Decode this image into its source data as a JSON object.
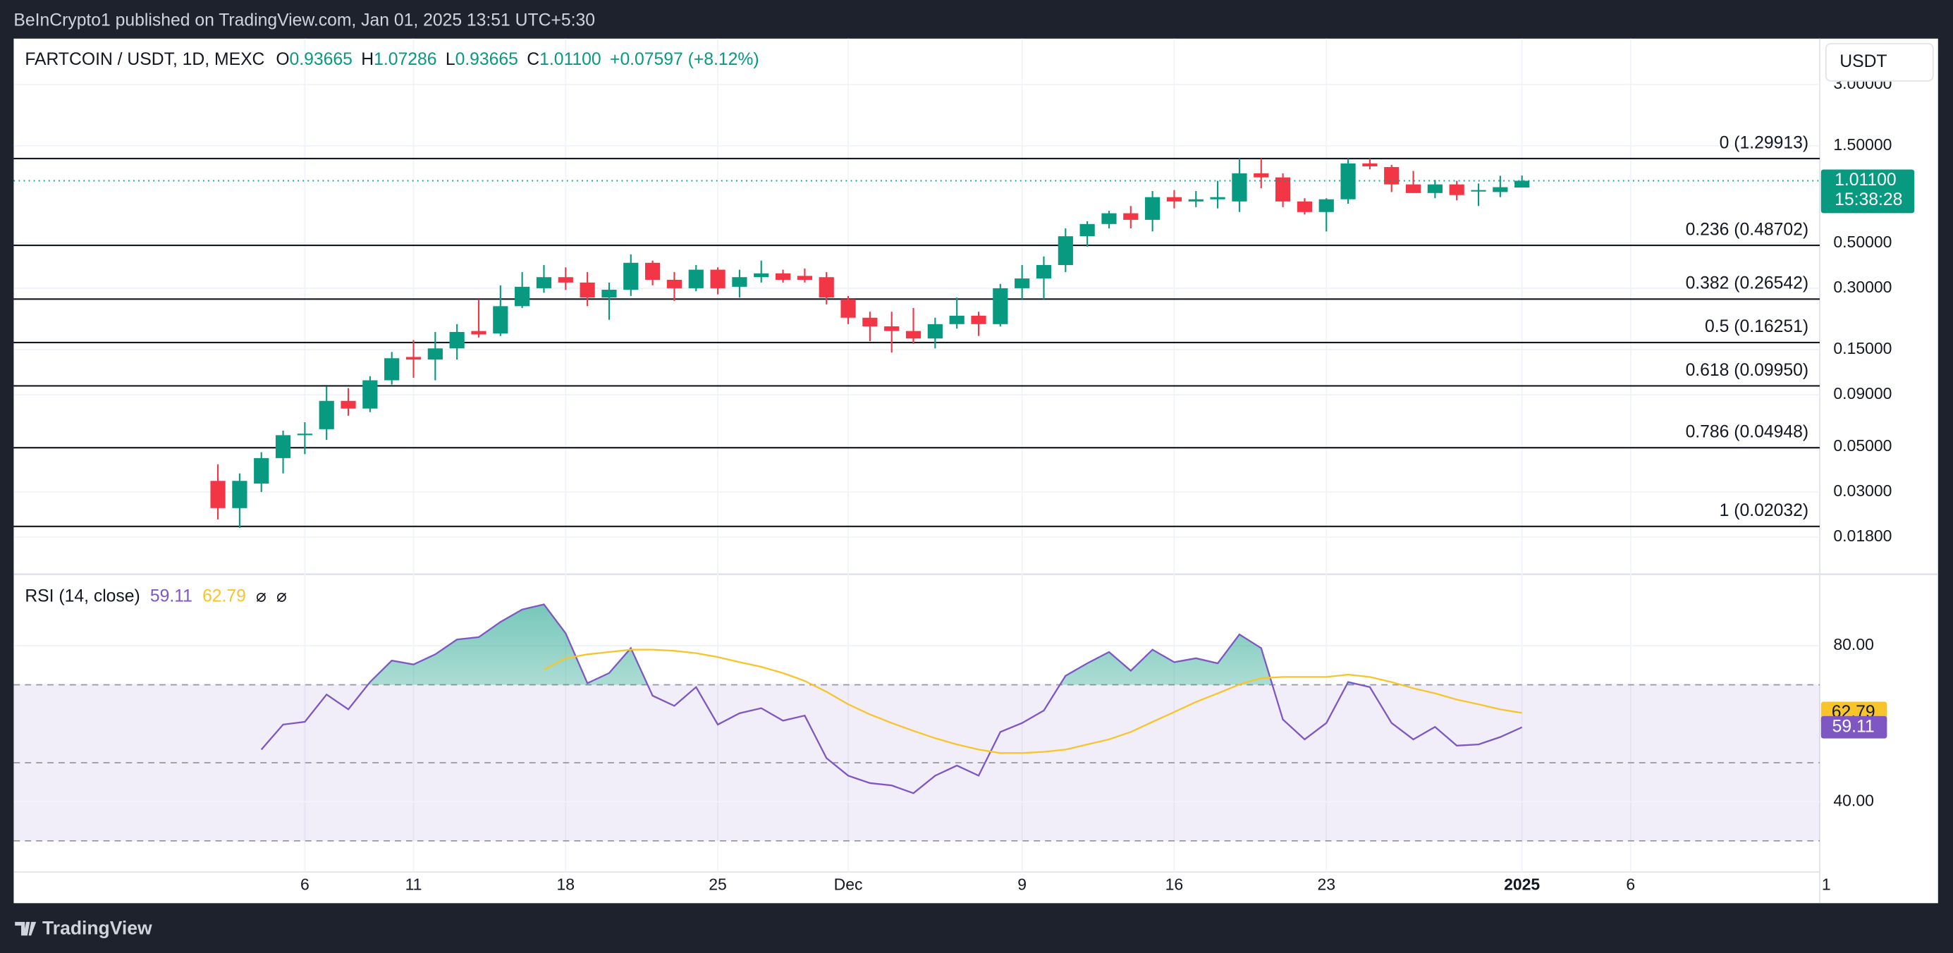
{
  "header": {
    "published": "BeInCrypto1 published on TradingView.com, Jan 01, 2025 13:51 UTC+5:30"
  },
  "footer": {
    "brand": "TradingView"
  },
  "chart_data": [
    {
      "type": "candlestick",
      "legend": {
        "symbol": "FARTCOIN / USDT, 1D, MEXC",
        "fields": [
          {
            "key": "O",
            "label": "0.93665"
          },
          {
            "key": "H",
            "label": "1.07286"
          },
          {
            "key": "L",
            "label": "0.93665"
          },
          {
            "key": "C",
            "label": "1.01100"
          }
        ],
        "change": "+0.07597 (+8.12%)"
      },
      "currency": "USDT",
      "countdown": "15:38:28",
      "up_color": "#089981",
      "down_color": "#f23645",
      "log_scale": true,
      "grid": true,
      "ylim": [
        0.012,
        5.04
      ],
      "yticks": [
        {
          "value": 3,
          "label": "3.00000"
        },
        {
          "value": 1.5,
          "label": "1.50000"
        },
        {
          "value": 0.5,
          "label": "0.50000"
        },
        {
          "value": 0.3,
          "label": "0.30000"
        },
        {
          "value": 0.15,
          "label": "0.15000"
        },
        {
          "value": 0.09,
          "label": "0.09000"
        },
        {
          "value": 0.05,
          "label": "0.05000"
        },
        {
          "value": 0.03,
          "label": "0.03000"
        },
        {
          "value": 0.018,
          "label": "0.01800"
        }
      ],
      "fib_levels": [
        {
          "value": 1.29913,
          "label": "0 (1.29913)"
        },
        {
          "value": 0.48702,
          "label": "0.236 (0.48702)"
        },
        {
          "value": 0.26542,
          "label": "0.382 (0.26542)"
        },
        {
          "value": 0.16251,
          "label": "0.5 (0.16251)"
        },
        {
          "value": 0.0995,
          "label": "0.618 (0.09950)"
        },
        {
          "value": 0.04948,
          "label": "0.786 (0.04948)"
        },
        {
          "value": 0.02032,
          "label": "1 (0.02032)"
        }
      ],
      "categories": [
        null,
        null,
        null,
        null,
        "6",
        null,
        null,
        null,
        null,
        "11",
        null,
        null,
        null,
        null,
        null,
        null,
        "18",
        null,
        null,
        null,
        null,
        null,
        null,
        "25",
        null,
        null,
        null,
        null,
        null,
        "Dec",
        null,
        null,
        null,
        null,
        null,
        null,
        null,
        "9",
        null,
        null,
        null,
        null,
        null,
        null,
        "16",
        null,
        null,
        null,
        null,
        null,
        null,
        "23",
        null,
        null,
        null,
        null,
        null,
        null,
        null,
        null,
        "2025",
        null,
        null,
        null,
        null,
        "6",
        null,
        null,
        null,
        null,
        null,
        null,
        null,
        null,
        "1"
      ],
      "open": [
        0.034,
        0.025,
        0.033,
        0.044,
        0.057,
        0.061,
        0.084,
        0.077,
        0.106,
        0.138,
        0.134,
        0.152,
        0.185,
        0.18,
        0.245,
        0.3,
        0.34,
        0.32,
        0.27,
        0.295,
        0.4,
        0.33,
        0.3,
        0.37,
        0.305,
        0.34,
        0.355,
        0.345,
        0.34,
        0.265,
        0.215,
        0.195,
        0.185,
        0.17,
        0.2,
        0.22,
        0.2,
        0.3,
        0.335,
        0.39,
        0.54,
        0.62,
        0.7,
        0.65,
        0.84,
        0.8,
        0.82,
        0.8,
        1.1,
        1.05,
        0.8,
        0.71,
        0.82,
        1.23,
        1.18,
        0.97,
        0.88,
        0.97,
        0.9,
        0.89,
        0.93665,
        null,
        null,
        null,
        null,
        null,
        null,
        null,
        null,
        null,
        null,
        null,
        null,
        null,
        null
      ],
      "high": [
        0.041,
        0.037,
        0.047,
        0.06,
        0.066,
        0.099,
        0.097,
        0.111,
        0.146,
        0.167,
        0.183,
        0.2,
        0.265,
        0.31,
        0.36,
        0.39,
        0.38,
        0.36,
        0.32,
        0.44,
        0.41,
        0.36,
        0.39,
        0.38,
        0.37,
        0.41,
        0.37,
        0.375,
        0.36,
        0.275,
        0.23,
        0.23,
        0.24,
        0.215,
        0.27,
        0.23,
        0.315,
        0.39,
        0.43,
        0.59,
        0.64,
        0.72,
        0.76,
        0.9,
        0.91,
        0.9,
        1.01,
        1.3,
        1.3,
        1.1,
        0.83,
        0.83,
        1.3,
        1.3,
        1.21,
        1.13,
        1.02,
        1.01,
        0.98,
        1.07,
        1.07286,
        null,
        null,
        null,
        null,
        null,
        null,
        null,
        null,
        null,
        null,
        null,
        null,
        null,
        null
      ],
      "low": [
        0.022,
        0.02,
        0.03,
        0.037,
        0.046,
        0.054,
        0.071,
        0.074,
        0.101,
        0.109,
        0.106,
        0.134,
        0.172,
        0.175,
        0.24,
        0.285,
        0.295,
        0.245,
        0.21,
        0.275,
        0.31,
        0.26,
        0.29,
        0.28,
        0.27,
        0.32,
        0.32,
        0.32,
        0.25,
        0.2,
        0.165,
        0.145,
        0.16,
        0.152,
        0.19,
        0.175,
        0.195,
        0.265,
        0.265,
        0.36,
        0.48,
        0.59,
        0.59,
        0.57,
        0.74,
        0.75,
        0.74,
        0.71,
        0.93,
        0.75,
        0.69,
        0.57,
        0.78,
        1.15,
        0.89,
        0.88,
        0.83,
        0.81,
        0.76,
        0.84,
        0.93665,
        null,
        null,
        null,
        null,
        null,
        null,
        null,
        null,
        null,
        null,
        null,
        null,
        null,
        null
      ],
      "close": [
        0.025,
        0.034,
        0.044,
        0.057,
        0.058,
        0.084,
        0.077,
        0.106,
        0.136,
        0.134,
        0.152,
        0.183,
        0.178,
        0.245,
        0.305,
        0.34,
        0.32,
        0.27,
        0.295,
        0.4,
        0.33,
        0.3,
        0.37,
        0.3,
        0.34,
        0.355,
        0.33,
        0.33,
        0.27,
        0.215,
        0.195,
        0.185,
        0.17,
        0.2,
        0.22,
        0.2,
        0.3,
        0.335,
        0.39,
        0.54,
        0.62,
        0.7,
        0.65,
        0.84,
        0.8,
        0.82,
        0.84,
        1.1,
        1.05,
        0.8,
        0.71,
        0.82,
        1.23,
        1.19,
        0.97,
        0.88,
        0.97,
        0.86,
        0.91,
        0.94,
        1.011,
        null,
        null,
        null,
        null,
        null,
        null,
        null,
        null,
        null,
        null,
        null,
        null,
        null,
        null
      ]
    },
    {
      "type": "line",
      "title": "RSI (14, close)",
      "flags": [
        "⌀",
        "⌀"
      ],
      "ylim": [
        22,
        98
      ],
      "yticks": [
        {
          "value": 80,
          "label": "80.00"
        },
        {
          "value": 40,
          "label": "40.00"
        }
      ],
      "bands": [
        70,
        50,
        30
      ],
      "band_color": "#7e57c2",
      "overbought_color": "#089981",
      "series": [
        {
          "color": "#7e57c2",
          "values": [
            null,
            null,
            53.4,
            59.8,
            60.5,
            67.5,
            63.7,
            70.7,
            76.2,
            75.2,
            77.8,
            81.6,
            82.2,
            86.1,
            89.3,
            90.6,
            83.2,
            70.4,
            73,
            79.4,
            67.2,
            64.6,
            69.4,
            59.8,
            62.7,
            64,
            60.8,
            62.1,
            51.2,
            46.7,
            44.8,
            44.2,
            42.2,
            46.7,
            49.3,
            46.7,
            57.9,
            60.2,
            63.4,
            72.3,
            75.5,
            78.4,
            73.6,
            79,
            75.8,
            76.8,
            75.5,
            82.9,
            79.4,
            61.1,
            56,
            60.2,
            70.7,
            69.4,
            60.2,
            56,
            59.2,
            54.4,
            54.7,
            56.6,
            59.11,
            null,
            null,
            null,
            null,
            null,
            null,
            null,
            null,
            null,
            null,
            null,
            null,
            null,
            null
          ]
        },
        {
          "color": "#f7c52b",
          "values": [
            null,
            null,
            null,
            null,
            null,
            null,
            null,
            null,
            null,
            null,
            null,
            null,
            null,
            null,
            null,
            73.9,
            76.8,
            77.8,
            78.4,
            79,
            79,
            78.7,
            78.1,
            77.1,
            75.8,
            74.6,
            73,
            71,
            68.2,
            65,
            62.4,
            60.2,
            58.2,
            56.3,
            54.7,
            53.4,
            52.5,
            52.5,
            52.8,
            53.4,
            54.7,
            56,
            57.9,
            60.5,
            63,
            65.6,
            67.8,
            70.1,
            71.7,
            72,
            72,
            72,
            72.6,
            72,
            70.7,
            69.1,
            67.8,
            66.2,
            65,
            63.7,
            62.79,
            null,
            null,
            null,
            null,
            null,
            null,
            null,
            null,
            null,
            null,
            null,
            null,
            null,
            null
          ]
        }
      ]
    }
  ]
}
